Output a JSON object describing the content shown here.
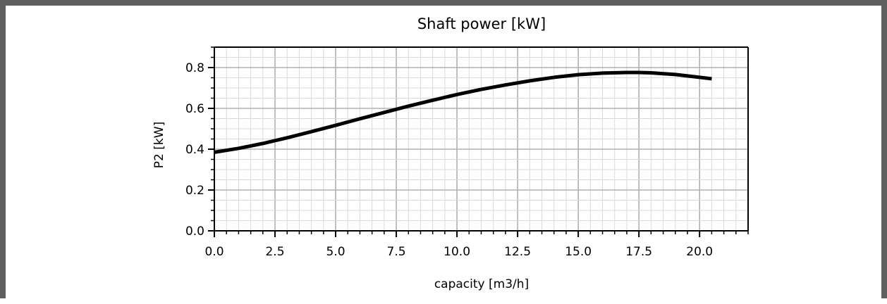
{
  "chart_data": {
    "type": "line",
    "title": "Shaft power [kW]",
    "xlabel": "capacity [m3/h]",
    "ylabel": "P2 [kW]",
    "xlim": [
      0,
      22
    ],
    "ylim": [
      0,
      0.9
    ],
    "x_major_ticks": [
      0,
      2.5,
      5,
      7.5,
      10,
      12.5,
      15,
      17.5,
      20
    ],
    "x_tick_labels": [
      "0.0",
      "2.5",
      "5.0",
      "7.5",
      "10.0",
      "12.5",
      "15.0",
      "17.5",
      "20.0"
    ],
    "x_minor_step": 0.5,
    "y_major_ticks": [
      0,
      0.2,
      0.4,
      0.6,
      0.8
    ],
    "y_tick_labels": [
      "0.0",
      "0.2",
      "0.4",
      "0.6",
      "0.8"
    ],
    "y_minor_step": 0.05,
    "grid": true,
    "line_color": "#000000",
    "grid_major_color": "#b0b0b0",
    "grid_minor_color": "#d9d9d9",
    "series": [
      {
        "x": [
          0,
          1,
          2,
          3,
          4,
          5,
          6,
          7,
          8,
          9,
          10,
          11,
          12,
          13,
          14,
          15,
          16,
          17,
          17.5,
          18,
          19,
          20,
          20.5
        ],
        "y": [
          0.385,
          0.404,
          0.428,
          0.456,
          0.486,
          0.517,
          0.549,
          0.58,
          0.611,
          0.64,
          0.668,
          0.693,
          0.715,
          0.735,
          0.752,
          0.765,
          0.773,
          0.776,
          0.776,
          0.774,
          0.766,
          0.752,
          0.745
        ]
      }
    ]
  }
}
